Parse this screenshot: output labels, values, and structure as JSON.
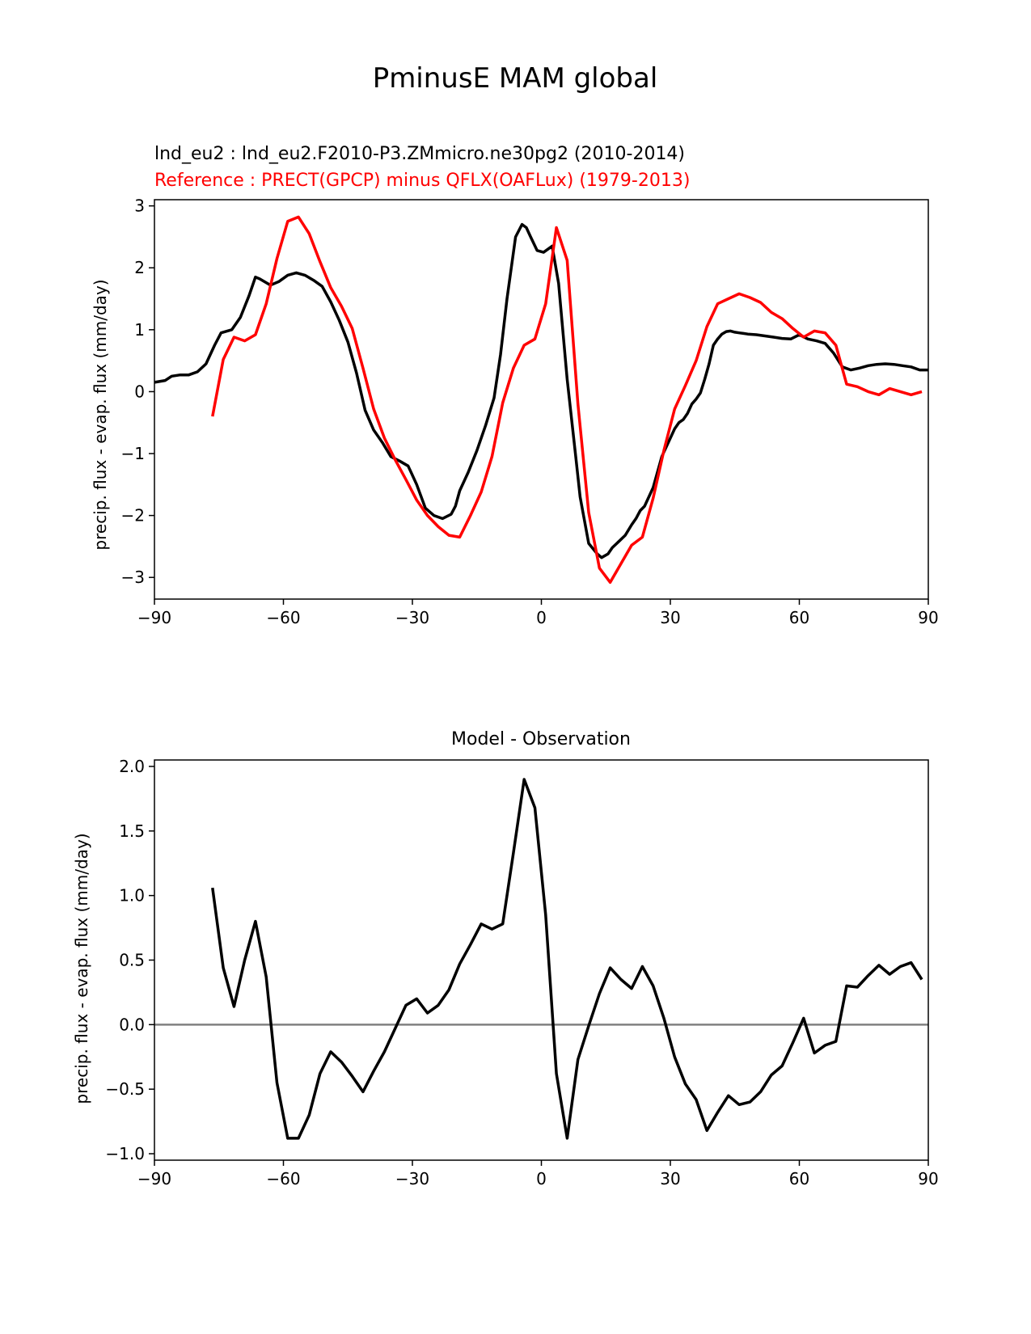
{
  "figure": {
    "title": "PminusE MAM global"
  },
  "chart_data": [
    {
      "type": "line",
      "title_test": "lnd_eu2 : lnd_eu2.F2010-P3.ZMmicro.ne30pg2 (2010-2014)",
      "title_ref": "Reference : PRECT(GPCP) minus QFLX(OAFLux) (1979-2013)",
      "ylabel": "precip. flux - evap. flux (mm/day)",
      "xlim": [
        -90,
        90
      ],
      "ylim": [
        -3.35,
        3.1
      ],
      "xticks": [
        -90,
        -60,
        -30,
        0,
        30,
        60,
        90
      ],
      "xtick_labels": [
        "−90",
        "−60",
        "−30",
        "0",
        "30",
        "60",
        "90"
      ],
      "yticks": [
        -3,
        -2,
        -1,
        0,
        1,
        2,
        3
      ],
      "ytick_labels": [
        "−3",
        "−2",
        "−1",
        "0",
        "1",
        "2",
        "3"
      ],
      "colors": {
        "test": "#000000",
        "reference": "#ff0000"
      },
      "series": [
        {
          "name": "lnd_eu2",
          "color": "#000000",
          "x": [
            -90,
            -87.5,
            -86,
            -84,
            -82,
            -80,
            -78,
            -76,
            -74.5,
            -72,
            -70,
            -68,
            -66.5,
            -65.5,
            -63,
            -61,
            -59,
            -57,
            -55,
            -53,
            -51,
            -49,
            -47,
            -45,
            -43,
            -41,
            -39,
            -37,
            -35,
            -33,
            -31,
            -29,
            -27,
            -25,
            -23,
            -21,
            -20,
            -19,
            -17,
            -15,
            -13,
            -11,
            -9.5,
            -8,
            -6,
            -4.5,
            -3.5,
            -2.5,
            -1,
            0.5,
            2.5,
            4,
            6,
            8,
            9,
            11,
            13,
            14,
            15.5,
            16.5,
            18,
            19.5,
            21,
            22,
            23,
            24,
            26,
            28,
            30,
            31,
            32,
            33,
            34,
            35,
            36,
            37,
            38,
            39,
            40,
            41,
            42,
            43,
            44,
            45,
            46,
            47,
            48,
            50,
            52,
            54,
            56,
            58,
            60,
            62,
            64,
            66,
            68,
            70,
            72,
            74,
            76,
            78,
            80,
            82,
            84,
            86,
            88,
            90
          ],
          "values": [
            0.15,
            0.18,
            0.25,
            0.27,
            0.27,
            0.32,
            0.45,
            0.75,
            0.95,
            1.0,
            1.2,
            1.55,
            1.85,
            1.82,
            1.72,
            1.78,
            1.88,
            1.92,
            1.88,
            1.8,
            1.7,
            1.45,
            1.15,
            0.8,
            0.3,
            -0.3,
            -0.62,
            -0.82,
            -1.05,
            -1.12,
            -1.2,
            -1.5,
            -1.88,
            -2.0,
            -2.05,
            -1.98,
            -1.85,
            -1.6,
            -1.3,
            -0.95,
            -0.55,
            -0.1,
            0.6,
            1.5,
            2.5,
            2.7,
            2.65,
            2.5,
            2.28,
            2.25,
            2.35,
            1.75,
            0.2,
            -1.05,
            -1.7,
            -2.45,
            -2.62,
            -2.68,
            -2.62,
            -2.52,
            -2.42,
            -2.32,
            -2.15,
            -2.05,
            -1.92,
            -1.85,
            -1.55,
            -1.05,
            -0.75,
            -0.6,
            -0.5,
            -0.45,
            -0.35,
            -0.2,
            -0.12,
            -0.02,
            0.2,
            0.45,
            0.75,
            0.85,
            0.93,
            0.97,
            0.98,
            0.96,
            0.95,
            0.94,
            0.93,
            0.92,
            0.9,
            0.88,
            0.86,
            0.85,
            0.92,
            0.85,
            0.82,
            0.78,
            0.62,
            0.4,
            0.35,
            0.38,
            0.42,
            0.44,
            0.45,
            0.44,
            0.42,
            0.4,
            0.35,
            0.35
          ]
        },
        {
          "name": "Reference",
          "color": "#ff0000",
          "x": [
            -76.5,
            -74,
            -71.5,
            -69,
            -66.5,
            -64,
            -61.5,
            -59,
            -56.5,
            -54,
            -51.5,
            -49,
            -46.5,
            -44,
            -41.5,
            -39,
            -36.5,
            -34,
            -31.5,
            -29,
            -26.5,
            -24,
            -21.5,
            -19,
            -16.5,
            -14,
            -11.5,
            -9,
            -6.5,
            -4,
            -1.5,
            1,
            3.5,
            6,
            8.5,
            11,
            13.5,
            16,
            18.5,
            21,
            23.5,
            26,
            28.5,
            31,
            33.5,
            36,
            38.5,
            41,
            43.5,
            46,
            48.5,
            51,
            53.5,
            56,
            58.5,
            61,
            63.5,
            66,
            68.5,
            71,
            73.5,
            76,
            78.5,
            81,
            83.5,
            86,
            88.5
          ],
          "values": [
            -0.4,
            0.52,
            0.88,
            0.82,
            0.92,
            1.42,
            2.15,
            2.75,
            2.82,
            2.55,
            2.1,
            1.68,
            1.38,
            1.02,
            0.38,
            -0.28,
            -0.75,
            -1.1,
            -1.42,
            -1.75,
            -2.0,
            -2.18,
            -2.32,
            -2.35,
            -2.0,
            -1.62,
            -1.05,
            -0.18,
            0.38,
            0.75,
            0.85,
            1.42,
            2.65,
            2.12,
            -0.2,
            -1.95,
            -2.85,
            -3.08,
            -2.78,
            -2.48,
            -2.35,
            -1.72,
            -0.95,
            -0.28,
            0.1,
            0.5,
            1.05,
            1.42,
            1.5,
            1.58,
            1.52,
            1.44,
            1.28,
            1.18,
            1.02,
            0.88,
            0.98,
            0.95,
            0.75,
            0.12,
            0.08,
            0.0,
            -0.05,
            0.05,
            0.0,
            -0.05,
            0.0
          ]
        }
      ]
    },
    {
      "type": "line",
      "title": "Model - Observation",
      "ylabel": "precip. flux - evap. flux (mm/day)",
      "xlim": [
        -90,
        90
      ],
      "ylim": [
        -1.05,
        2.05
      ],
      "xticks": [
        -90,
        -60,
        -30,
        0,
        30,
        60,
        90
      ],
      "xtick_labels": [
        "−90",
        "−60",
        "−30",
        "0",
        "30",
        "60",
        "90"
      ],
      "yticks": [
        -1.0,
        -0.5,
        0.0,
        0.5,
        1.0,
        1.5,
        2.0
      ],
      "ytick_labels": [
        "−1.0",
        "−0.5",
        "0.0",
        "0.5",
        "1.0",
        "1.5",
        "2.0"
      ],
      "zero_line_color": "#808080",
      "series": [
        {
          "name": "Model - Observation",
          "color": "#000000",
          "x": [
            -76.5,
            -74,
            -71.5,
            -69,
            -66.5,
            -64,
            -61.5,
            -59,
            -56.5,
            -54,
            -51.5,
            -49,
            -46.5,
            -44,
            -41.5,
            -39,
            -36.5,
            -34,
            -31.5,
            -29,
            -26.5,
            -24,
            -21.5,
            -19,
            -16.5,
            -14,
            -11.5,
            -9,
            -6.5,
            -4,
            -1.5,
            1,
            3.5,
            6,
            8.5,
            11,
            13.5,
            16,
            18.5,
            21,
            23.5,
            26,
            28.5,
            31,
            33.5,
            36,
            38.5,
            41,
            43.5,
            46,
            48.5,
            51,
            53.5,
            56,
            58.5,
            61,
            63.5,
            66,
            68.5,
            71,
            73.5,
            76,
            78.5,
            81,
            83.5,
            86,
            88.5
          ],
          "values": [
            1.06,
            0.44,
            0.14,
            0.5,
            0.8,
            0.37,
            -0.45,
            -0.88,
            -0.88,
            -0.7,
            -0.38,
            -0.21,
            -0.29,
            -0.4,
            -0.52,
            -0.36,
            -0.21,
            -0.03,
            0.15,
            0.2,
            0.09,
            0.15,
            0.27,
            0.47,
            0.62,
            0.78,
            0.74,
            0.78,
            1.33,
            1.9,
            1.68,
            0.85,
            -0.38,
            -0.88,
            -0.27,
            -0.01,
            0.24,
            0.44,
            0.35,
            0.28,
            0.45,
            0.3,
            0.05,
            -0.25,
            -0.46,
            -0.58,
            -0.82,
            -0.68,
            -0.55,
            -0.62,
            -0.6,
            -0.52,
            -0.39,
            -0.32,
            -0.14,
            0.05,
            -0.22,
            -0.16,
            -0.13,
            0.3,
            0.29,
            0.38,
            0.46,
            0.39,
            0.45,
            0.48,
            0.35
          ]
        }
      ]
    }
  ]
}
